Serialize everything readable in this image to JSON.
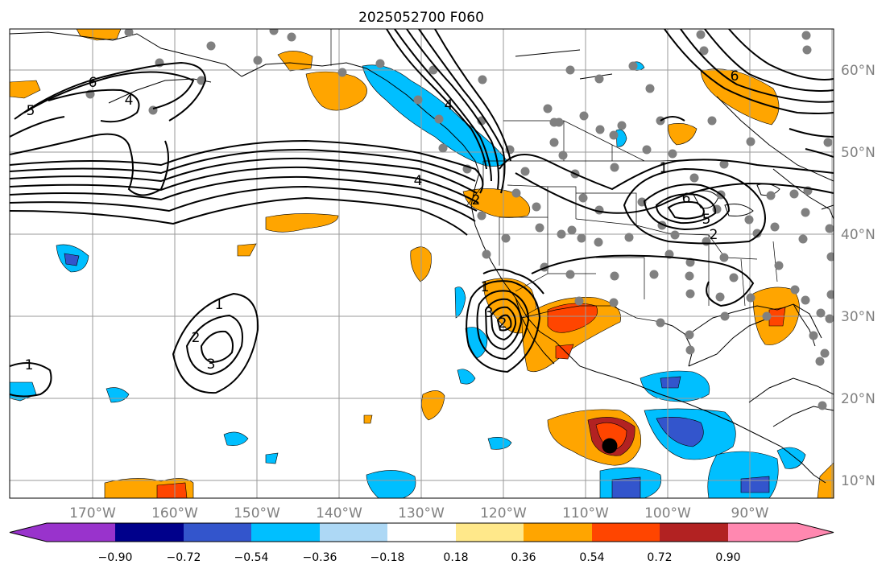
{
  "title": "2025052700 F060",
  "longitude_labels": [
    "170°W",
    "160°W",
    "150°W",
    "140°W",
    "130°W",
    "120°W",
    "110°W",
    "100°W",
    "90°W"
  ],
  "latitude_labels": [
    "60°N",
    "50°N",
    "40°N",
    "30°N",
    "20°N",
    "10°N"
  ],
  "contour_labels": [
    "6",
    "5",
    "4",
    "4",
    "2",
    "1",
    "6",
    "5",
    "4",
    "3",
    "2",
    "1",
    "2",
    "6",
    "1",
    "2",
    "3",
    "1"
  ],
  "colorbar": {
    "tick_labels": [
      "−0.90",
      "−0.72",
      "−0.54",
      "−0.36",
      "−0.18",
      "0.18",
      "0.36",
      "0.54",
      "0.72",
      "0.90"
    ],
    "colors": [
      "#9933cc",
      "#00008b",
      "#3355cc",
      "#00bfff",
      "#add8f5",
      "#ffffff",
      "#ffe88a",
      "#ffa500",
      "#ff4500",
      "#b22222",
      "#ff88b0"
    ]
  }
}
